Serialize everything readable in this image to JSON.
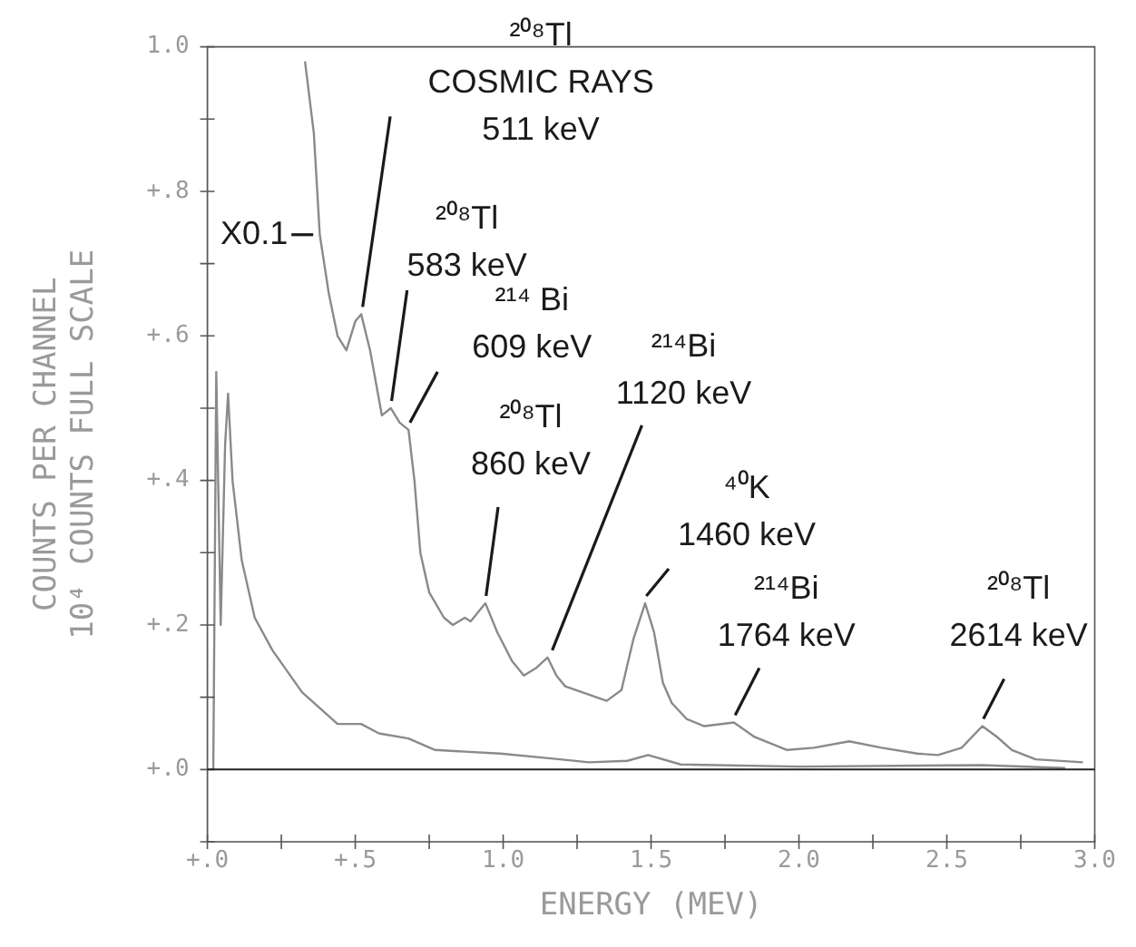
{
  "chart_data": {
    "type": "line",
    "xlabel": "ENERGY (MEV)",
    "ylabel": "COUNTS PER CHANNEL\n10⁴ COUNTS FULL SCALE",
    "xlim": [
      0,
      3.0
    ],
    "ylim": [
      -0.1,
      1.0
    ],
    "xticks": [
      {
        "value": 0,
        "label": "+.0"
      },
      {
        "value": 0.25,
        "label": null
      },
      {
        "value": 0.5,
        "label": "+.5"
      },
      {
        "value": 0.75,
        "label": null
      },
      {
        "value": 1.0,
        "label": "1.0"
      },
      {
        "value": 1.25,
        "label": null
      },
      {
        "value": 1.5,
        "label": "1.5"
      },
      {
        "value": 1.75,
        "label": null
      },
      {
        "value": 2.0,
        "label": "2.0"
      },
      {
        "value": 2.25,
        "label": null
      },
      {
        "value": 2.5,
        "label": "2.5"
      },
      {
        "value": 2.75,
        "label": null
      },
      {
        "value": 3.0,
        "label": "3.0"
      }
    ],
    "yticks": [
      {
        "value": -0.1,
        "label": null
      },
      {
        "value": 0,
        "label": "+.0"
      },
      {
        "value": 0.1,
        "label": null
      },
      {
        "value": 0.2,
        "label": "+.2"
      },
      {
        "value": 0.3,
        "label": null
      },
      {
        "value": 0.4,
        "label": "+.4"
      },
      {
        "value": 0.5,
        "label": null
      },
      {
        "value": 0.6,
        "label": "+.6"
      },
      {
        "value": 0.7,
        "label": null
      },
      {
        "value": 0.8,
        "label": "+.8"
      },
      {
        "value": 0.9,
        "label": null
      },
      {
        "value": 1.0,
        "label": "1.0"
      }
    ],
    "grid": false,
    "legend": false,
    "marker": "none",
    "line_style": "solid",
    "series": [
      {
        "color": "#8a8a8a",
        "x": [
          0.33,
          0.36,
          0.38,
          0.41,
          0.44,
          0.47,
          0.5,
          0.52,
          0.55,
          0.59,
          0.62,
          0.65,
          0.68,
          0.7,
          0.72,
          0.75,
          0.8,
          0.83,
          0.87,
          0.89,
          0.94,
          0.98,
          1.03,
          1.07,
          1.11,
          1.15,
          1.18,
          1.21,
          1.28,
          1.35,
          1.4,
          1.44,
          1.48,
          1.51,
          1.54,
          1.57,
          1.62,
          1.68,
          1.78,
          1.85,
          1.96,
          2.05,
          2.17,
          2.28,
          2.4,
          2.47,
          2.55,
          2.62,
          2.67,
          2.72,
          2.8,
          2.96
        ],
        "values": [
          0.98,
          0.88,
          0.74,
          0.66,
          0.6,
          0.58,
          0.62,
          0.63,
          0.58,
          0.49,
          0.5,
          0.48,
          0.47,
          0.4,
          0.3,
          0.245,
          0.21,
          0.2,
          0.21,
          0.205,
          0.23,
          0.19,
          0.15,
          0.13,
          0.14,
          0.155,
          0.13,
          0.115,
          0.105,
          0.095,
          0.11,
          0.18,
          0.23,
          0.19,
          0.12,
          0.092,
          0.07,
          0.06,
          0.065,
          0.045,
          0.027,
          0.03,
          0.039,
          0.03,
          0.022,
          0.02,
          0.03,
          0.06,
          0.045,
          0.027,
          0.014,
          0.01
        ]
      },
      {
        "color": "#8a8a8a",
        "x": [
          0.02,
          0.03,
          0.045,
          0.06,
          0.07,
          0.085,
          0.116,
          0.16,
          0.22,
          0.32,
          0.44,
          0.52,
          0.58,
          0.68,
          0.77,
          0.99,
          1.17,
          1.29,
          1.42,
          1.49,
          1.6,
          2.0,
          2.62,
          2.9
        ],
        "values": [
          0,
          0.55,
          0.2,
          0.45,
          0.52,
          0.4,
          0.29,
          0.21,
          0.165,
          0.107,
          0.063,
          0.063,
          0.05,
          0.043,
          0.027,
          0.022,
          0.015,
          0.01,
          0.012,
          0.02,
          0.007,
          0.004,
          0.006,
          0.002
        ]
      }
    ],
    "ref_lines": [
      {
        "axis": "y",
        "value": 0,
        "color": "#222222"
      }
    ],
    "annotations": [
      {
        "text": "²⁰⁸Tl\nCOSMIC RAYS\n511 keV",
        "x": 0.52,
        "y": 0.63
      },
      {
        "text": "²⁰⁸Tl\n583 keV",
        "x": 0.62,
        "y": 0.5
      },
      {
        "text": "²¹⁴ Bi\n609 keV",
        "x": 0.68,
        "y": 0.47
      },
      {
        "text": "²⁰⁸Tl\n860 keV",
        "x": 0.94,
        "y": 0.23
      },
      {
        "text": "²¹⁴Bi\n1120 keV",
        "x": 1.15,
        "y": 0.155
      },
      {
        "text": "⁴⁰K\n1460 keV",
        "x": 1.48,
        "y": 0.23
      },
      {
        "text": "²¹⁴Bi\n1764 keV",
        "x": 1.78,
        "y": 0.065
      },
      {
        "text": "²⁰⁸Tl\n2614 keV",
        "x": 2.62,
        "y": 0.06
      },
      {
        "text": "X0.1",
        "x": 0.37,
        "y": 0.74
      }
    ]
  }
}
